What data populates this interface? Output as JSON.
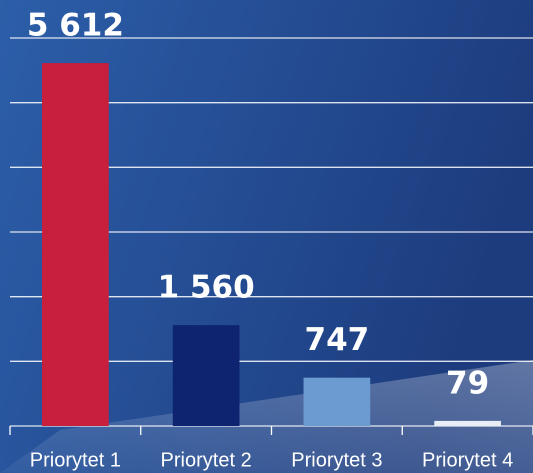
{
  "chart_data": {
    "type": "bar",
    "categories": [
      "Priorytet 1",
      "Priorytet 2",
      "Priorytet 3",
      "Priorytet 4"
    ],
    "values": [
      5612,
      1560,
      747,
      79
    ],
    "value_labels": [
      "5 612",
      "1 560",
      "747",
      "79"
    ],
    "colors": [
      "#c8203c",
      "#0f2470",
      "#6b9bd1",
      "#e8eef5"
    ],
    "ylim": [
      0,
      6000
    ],
    "yticks": [
      0,
      1000,
      2000,
      3000,
      4000,
      5000,
      6000
    ],
    "grid": true
  }
}
